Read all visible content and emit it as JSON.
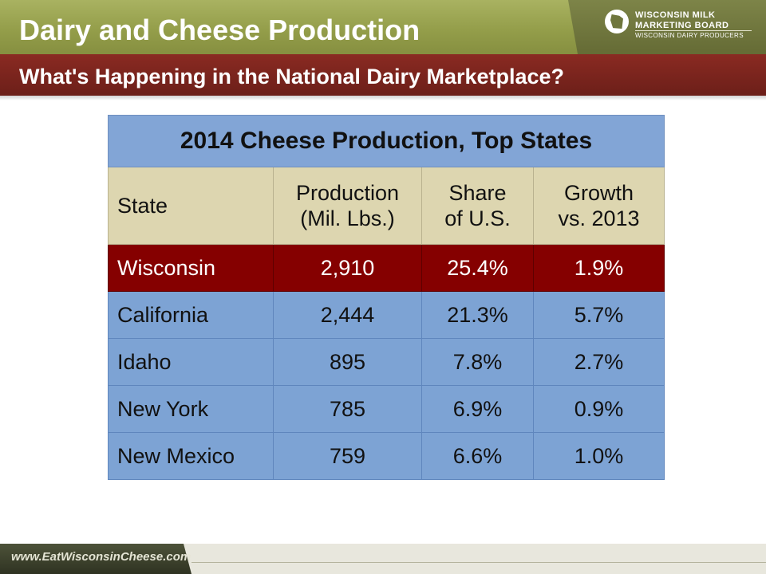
{
  "slide": {
    "title": "Dairy and Cheese Production",
    "subtitle": "What's Happening in the National Dairy Marketplace?",
    "footer_url": "www.EatWisconsinCheese.com"
  },
  "logo": {
    "line1": "WISCONSIN MILK",
    "line2": "MARKETING BOARD",
    "line3": "WISCONSIN DAIRY PRODUCERS",
    "icon": "wisconsin-state-icon"
  },
  "colors": {
    "header_green": "#949e4a",
    "subtitle_maroon": "#7a241d",
    "table_blue": "#7da3d4",
    "table_header_tan": "#ddd6b0",
    "highlight_red": "#850000"
  },
  "chart_data": {
    "type": "table",
    "title": "2014 Cheese Production, Top States",
    "columns": [
      "State",
      "Production (Mil. Lbs.)",
      "Share of U.S.",
      "Growth vs. 2013"
    ],
    "column_lines": [
      [
        "State"
      ],
      [
        "Production",
        "(Mil. Lbs.)"
      ],
      [
        "Share",
        "of U.S."
      ],
      [
        "Growth",
        "vs. 2013"
      ]
    ],
    "rows": [
      [
        "Wisconsin",
        "2,910",
        "25.4%",
        "1.9%"
      ],
      [
        "California",
        "2,444",
        "21.3%",
        "5.7%"
      ],
      [
        "Idaho",
        "895",
        "7.8%",
        "2.7%"
      ],
      [
        "New York",
        "785",
        "6.9%",
        "0.9%"
      ],
      [
        "New Mexico",
        "759",
        "6.6%",
        "1.0%"
      ]
    ],
    "highlighted_row": "Wisconsin"
  }
}
